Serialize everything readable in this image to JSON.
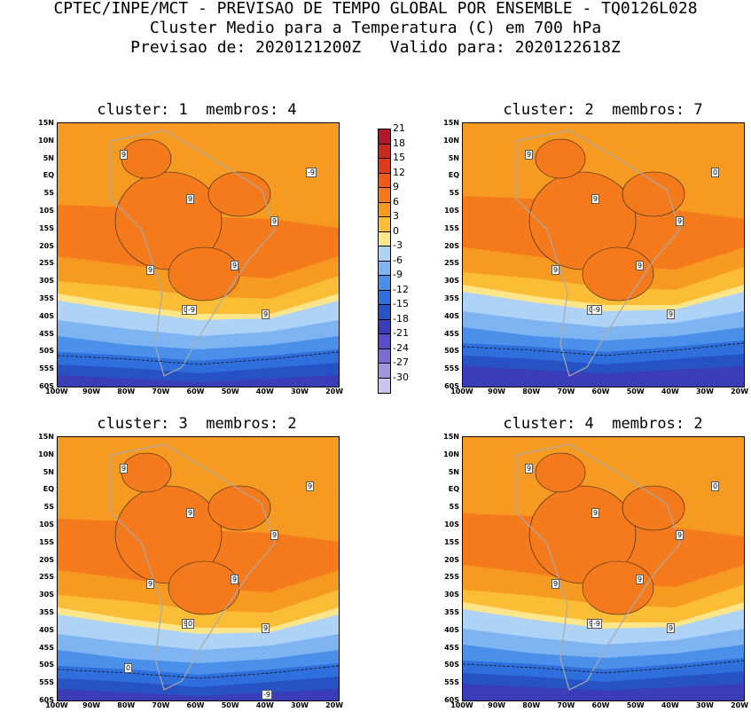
{
  "header": {
    "line1": "CPTEC/INPE/MCT - PREVISAO DE TEMPO GLOBAL POR ENSEMBLE - TQ0126L028",
    "line2": "Cluster Medio para a Temperatura (C) em 700 hPa",
    "line3": "Previsao de: 2020121200Z   Valido para: 2020122618Z"
  },
  "axes": {
    "lat_labels": [
      "15N",
      "10N",
      "5N",
      "EQ",
      "5S",
      "10S",
      "15S",
      "20S",
      "25S",
      "30S",
      "35S",
      "40S",
      "45S",
      "50S",
      "55S",
      "60S"
    ],
    "lon_labels": [
      "100W",
      "90W",
      "80W",
      "70W",
      "60W",
      "50W",
      "40W",
      "30W",
      "20W"
    ]
  },
  "colorbar": {
    "levels": [
      "21",
      "18",
      "15",
      "12",
      "9",
      "6",
      "3",
      "0",
      "-3",
      "-6",
      "-9",
      "-12",
      "-15",
      "-18",
      "-21",
      "-24",
      "-27",
      "-30"
    ],
    "colors": [
      "#b2182b",
      "#c92a1e",
      "#e03a1a",
      "#f05a14",
      "#f47a1c",
      "#f79a22",
      "#fbbd35",
      "#fde58a",
      "#aed3f7",
      "#7fb4f2",
      "#4a8fea",
      "#2e6fdc",
      "#2752c4",
      "#3a3cb8",
      "#5a4cc7",
      "#7d6ad3",
      "#a595df",
      "#cfc4ee"
    ]
  },
  "panels": [
    {
      "title": "cluster: 1  membros: 4",
      "labels": [
        "9",
        "9",
        "9",
        "9",
        "9",
        "9",
        "0",
        "-9",
        "-9"
      ]
    },
    {
      "title": "cluster: 2  membros: 7",
      "labels": [
        "9",
        "9",
        "9",
        "9",
        "9",
        "9",
        "0",
        "0",
        "-9"
      ]
    },
    {
      "title": "cluster: 3  membros: 2",
      "labels": [
        "9",
        "9",
        "9",
        "9",
        "9",
        "9",
        "9",
        "9",
        "0",
        "0",
        "-9"
      ]
    },
    {
      "title": "cluster: 4  membros: 2",
      "labels": [
        "9",
        "9",
        "9",
        "9",
        "9",
        "9",
        "9",
        "0",
        "-9"
      ]
    }
  ]
}
